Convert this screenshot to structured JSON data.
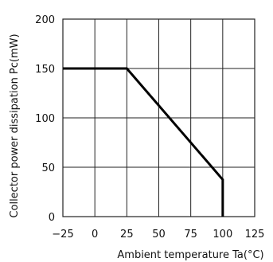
{
  "chart_data": {
    "type": "line",
    "title": "",
    "xlabel": "Ambient temperature Ta(°C)",
    "ylabel": "Collector power dissipation Pc(mW)",
    "xlim": [
      -25,
      125
    ],
    "ylim": [
      0,
      200
    ],
    "xticks": [
      -25,
      0,
      25,
      50,
      75,
      100,
      125
    ],
    "yticks": [
      0,
      50,
      100,
      150,
      200
    ],
    "xtick_labels": [
      "−25",
      "0",
      "25",
      "50",
      "75",
      "100",
      "125"
    ],
    "ytick_labels": [
      "0",
      "50",
      "100",
      "150",
      "200"
    ],
    "grid": true,
    "series": [
      {
        "x": [
          -25,
          25,
          100,
          100
        ],
        "y": [
          150,
          150,
          37.5,
          0
        ]
      }
    ],
    "colors": {
      "line": "#000000",
      "grid": "#222222"
    }
  }
}
